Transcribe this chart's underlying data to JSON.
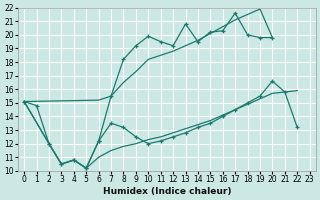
{
  "xlabel": "Humidex (Indice chaleur)",
  "bg_color": "#cce8e4",
  "grid_color": "#ffffff",
  "line_color": "#1a7a6e",
  "xlim": [
    -0.5,
    23.5
  ],
  "ylim": [
    10,
    22
  ],
  "xticks": [
    0,
    1,
    2,
    3,
    4,
    5,
    6,
    7,
    8,
    9,
    10,
    11,
    12,
    13,
    14,
    15,
    16,
    17,
    18,
    19,
    20,
    21,
    22,
    23
  ],
  "yticks": [
    10,
    11,
    12,
    13,
    14,
    15,
    16,
    17,
    18,
    19,
    20,
    21,
    22
  ],
  "line_upper_x": [
    0,
    1,
    2,
    3,
    4,
    5,
    6,
    7,
    8,
    9,
    10,
    11,
    12,
    13,
    14,
    15,
    16,
    17,
    18,
    19,
    20
  ],
  "line_upper_y": [
    15.1,
    14.8,
    12.0,
    10.5,
    10.8,
    10.2,
    12.2,
    15.5,
    18.2,
    19.2,
    19.9,
    19.5,
    19.2,
    20.8,
    19.5,
    20.2,
    20.3,
    21.6,
    20.0,
    19.8,
    19.8
  ],
  "line_mid_x": [
    0,
    6,
    7,
    8,
    9,
    10,
    11,
    12,
    13,
    14,
    15,
    16,
    17,
    18,
    19,
    20
  ],
  "line_mid_y": [
    15.1,
    15.2,
    15.5,
    16.5,
    17.3,
    18.2,
    18.5,
    18.8,
    19.2,
    19.6,
    20.1,
    20.6,
    21.1,
    21.5,
    21.9,
    19.8
  ],
  "line_lower_x": [
    0,
    2,
    3,
    4,
    5,
    6,
    7,
    8,
    9,
    10,
    11,
    12,
    13,
    14,
    15,
    16,
    17,
    18,
    19,
    20,
    21,
    22
  ],
  "line_lower_y": [
    15.1,
    12.0,
    10.5,
    10.8,
    10.2,
    12.2,
    13.5,
    13.2,
    12.5,
    12.0,
    12.2,
    12.5,
    12.8,
    13.2,
    13.5,
    14.0,
    14.5,
    15.0,
    15.5,
    16.6,
    15.8,
    13.2
  ],
  "line_base_x": [
    0,
    2,
    3,
    4,
    5,
    6,
    7,
    8,
    9,
    10,
    11,
    12,
    13,
    14,
    15,
    16,
    17,
    18,
    19,
    20,
    21,
    22
  ],
  "line_base_y": [
    15.1,
    12.0,
    10.5,
    10.8,
    10.2,
    11.0,
    11.5,
    11.8,
    12.0,
    12.3,
    12.5,
    12.8,
    13.1,
    13.4,
    13.7,
    14.1,
    14.5,
    14.9,
    15.3,
    15.7,
    15.8,
    15.9
  ]
}
